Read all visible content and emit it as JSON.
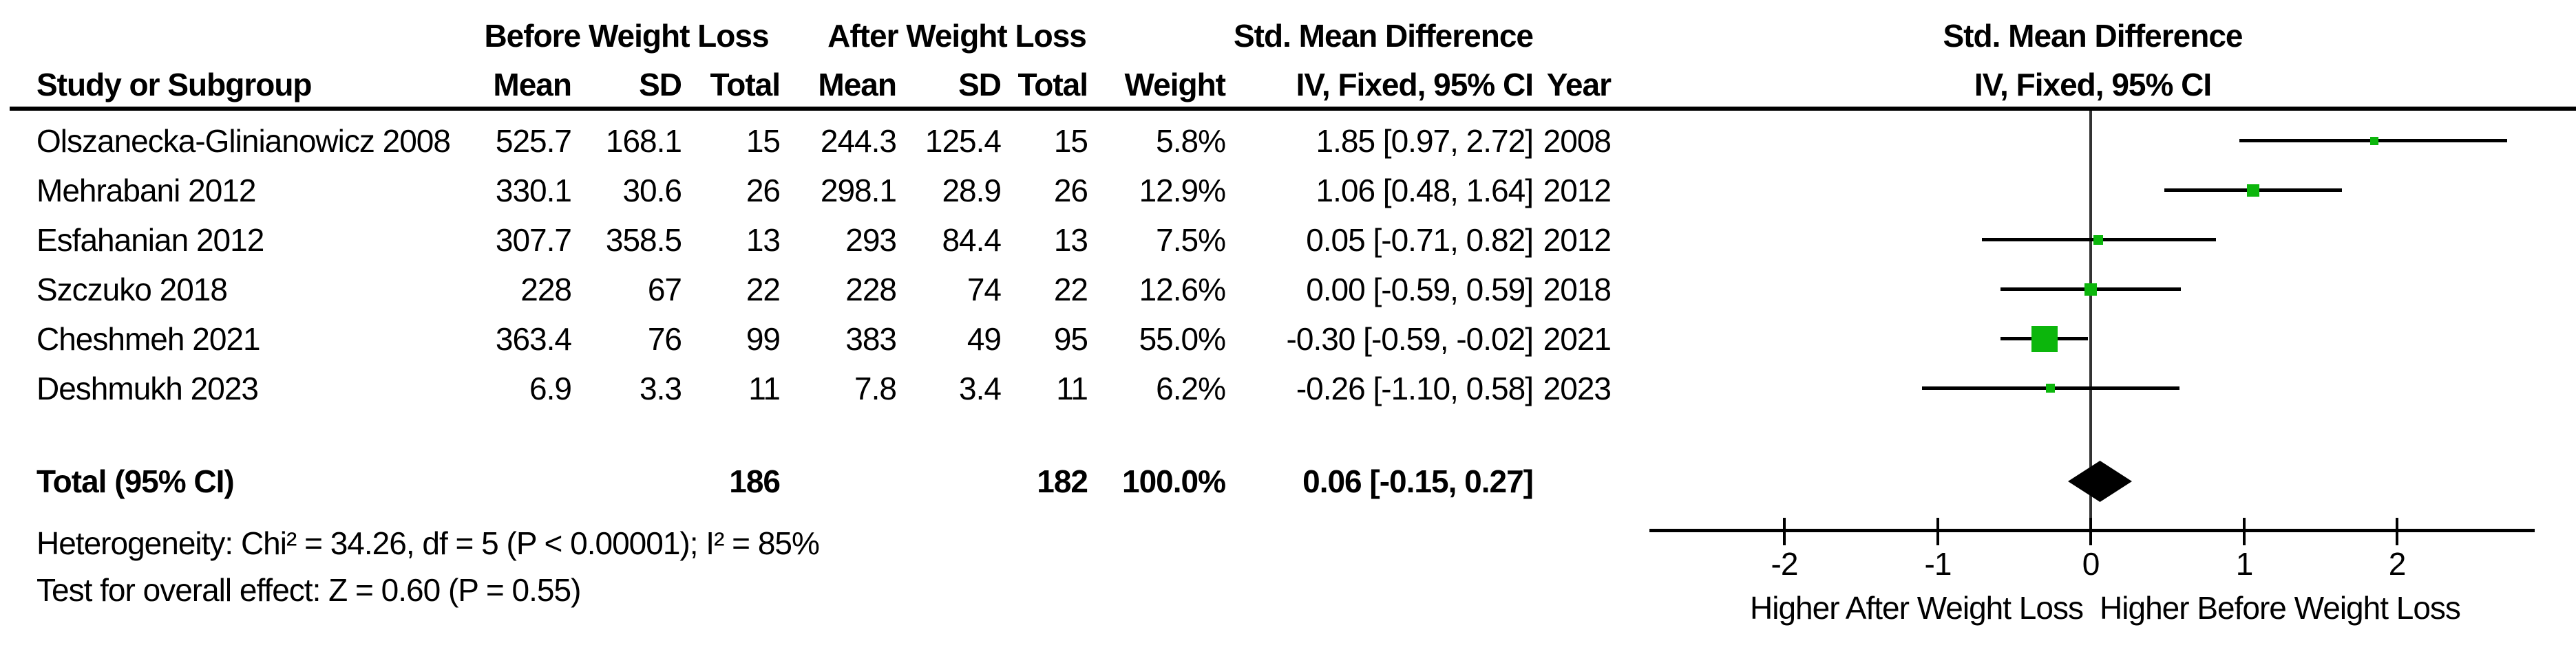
{
  "table_header": {
    "group_before": "Before Weight Loss",
    "group_after": "After Weight Loss",
    "effect_line1": "Std. Mean Difference",
    "effect_line2": "IV, Fixed, 95% CI",
    "col_study": "Study or Subgroup",
    "col_mean": "Mean",
    "col_sd": "SD",
    "col_total": "Total",
    "col_weight": "Weight",
    "col_year": "Year",
    "plot_line1": "Std. Mean Difference",
    "plot_line2": "IV, Fixed, 95% CI"
  },
  "chart_data": {
    "type": "forest",
    "effect_measure": "Std. Mean Difference",
    "model": "IV, Fixed, 95% CI",
    "studies": [
      {
        "study": "Olszanecka-Glinianowicz 2008",
        "before": {
          "mean": "525.7",
          "sd": "168.1",
          "total": "15"
        },
        "after": {
          "mean": "244.3",
          "sd": "125.4",
          "total": "15"
        },
        "weight": "5.8%",
        "weight_pct": 5.8,
        "ci_text": "1.85 [0.97, 2.72]",
        "year": "2008",
        "est": 1.85,
        "lo": 0.97,
        "hi": 2.72
      },
      {
        "study": "Mehrabani 2012",
        "before": {
          "mean": "330.1",
          "sd": "30.6",
          "total": "26"
        },
        "after": {
          "mean": "298.1",
          "sd": "28.9",
          "total": "26"
        },
        "weight": "12.9%",
        "weight_pct": 12.9,
        "ci_text": "1.06 [0.48, 1.64]",
        "year": "2012",
        "est": 1.06,
        "lo": 0.48,
        "hi": 1.64
      },
      {
        "study": "Esfahanian 2012",
        "before": {
          "mean": "307.7",
          "sd": "358.5",
          "total": "13"
        },
        "after": {
          "mean": "293",
          "sd": "84.4",
          "total": "13"
        },
        "weight": "7.5%",
        "weight_pct": 7.5,
        "ci_text": "0.05 [-0.71, 0.82]",
        "year": "2012",
        "est": 0.05,
        "lo": -0.71,
        "hi": 0.82
      },
      {
        "study": "Szczuko 2018",
        "before": {
          "mean": "228",
          "sd": "67",
          "total": "22"
        },
        "after": {
          "mean": "228",
          "sd": "74",
          "total": "22"
        },
        "weight": "12.6%",
        "weight_pct": 12.6,
        "ci_text": "0.00 [-0.59, 0.59]",
        "year": "2018",
        "est": 0.0,
        "lo": -0.59,
        "hi": 0.59
      },
      {
        "study": "Cheshmeh 2021",
        "before": {
          "mean": "363.4",
          "sd": "76",
          "total": "99"
        },
        "after": {
          "mean": "383",
          "sd": "49",
          "total": "95"
        },
        "weight": "55.0%",
        "weight_pct": 55.0,
        "ci_text": "-0.30 [-0.59, -0.02]",
        "year": "2021",
        "est": -0.3,
        "lo": -0.59,
        "hi": -0.02
      },
      {
        "study": "Deshmukh 2023",
        "before": {
          "mean": "6.9",
          "sd": "3.3",
          "total": "11"
        },
        "after": {
          "mean": "7.8",
          "sd": "3.4",
          "total": "11"
        },
        "weight": "6.2%",
        "weight_pct": 6.2,
        "ci_text": "-0.26 [-1.10, 0.58]",
        "year": "2023",
        "est": -0.26,
        "lo": -1.1,
        "hi": 0.58
      }
    ],
    "total": {
      "label": "Total (95% CI)",
      "before_total": "186",
      "after_total": "182",
      "weight": "100.0%",
      "ci_text": "0.06 [-0.15, 0.27]",
      "est": 0.06,
      "lo": -0.15,
      "hi": 0.27
    },
    "heterogeneity": "Heterogeneity: Chi² = 34.26, df = 5 (P < 0.00001); I² = 85%",
    "overall_effect": "Test for overall effect: Z = 0.60 (P = 0.55)",
    "axis": {
      "ticks": [
        -2,
        -1,
        0,
        1,
        2
      ],
      "min": -2.88,
      "max": 2.9,
      "label_left": "Higher After Weight Loss",
      "label_right": "Higher Before Weight Loss",
      "grid": false
    },
    "colors": {
      "marker_green": "#0cb60c",
      "line_black": "#000000",
      "zero_line_gray": "#333333",
      "diamond_black": "#000000"
    }
  }
}
